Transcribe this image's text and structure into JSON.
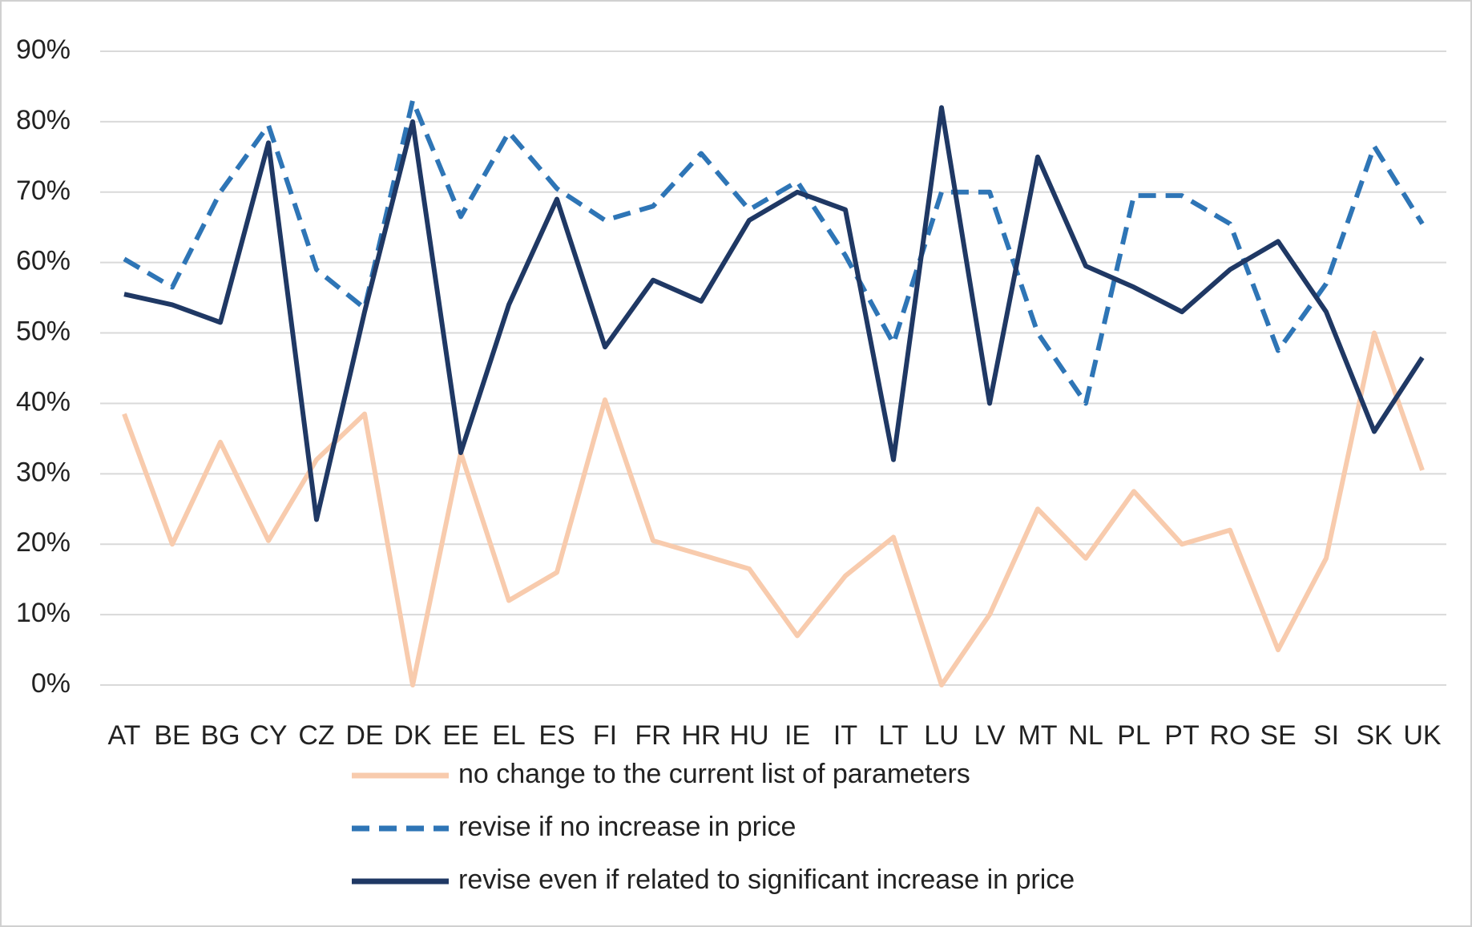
{
  "chart_data": {
    "type": "line",
    "categories": [
      "AT",
      "BE",
      "BG",
      "CY",
      "CZ",
      "DE",
      "DK",
      "EE",
      "EL",
      "ES",
      "FI",
      "FR",
      "HR",
      "HU",
      "IE",
      "IT",
      "LT",
      "LU",
      "LV",
      "MT",
      "NL",
      "PL",
      "PT",
      "RO",
      "SE",
      "SI",
      "SK",
      "UK"
    ],
    "series": [
      {
        "name": "no change to the current list of parameters",
        "color": "#f8cbad",
        "dash": false,
        "values": [
          38.5,
          20,
          34.5,
          20.5,
          32,
          38.5,
          0,
          33,
          12,
          16,
          40.5,
          20.5,
          18.5,
          16.5,
          7,
          15.5,
          21,
          0,
          10,
          25,
          18,
          27.5,
          20,
          22,
          5,
          18,
          50,
          30.5
        ]
      },
      {
        "name": "revise if no increase in price",
        "color": "#2e75b6",
        "dash": true,
        "values": [
          60.5,
          56.5,
          70,
          79.5,
          59,
          53.5,
          83,
          66.5,
          78.5,
          70.5,
          66,
          68,
          75.5,
          67.5,
          71.5,
          61,
          48.5,
          70,
          70,
          50,
          40,
          69.5,
          69.5,
          65.5,
          47.5,
          57,
          76.5,
          65.5
        ]
      },
      {
        "name": "revise even if related to significant increase in price",
        "color": "#1f3864",
        "dash": false,
        "values": [
          55.5,
          54,
          51.5,
          77,
          23.5,
          53,
          80,
          33,
          54,
          69,
          48,
          57.5,
          54.5,
          66,
          70,
          67.5,
          32,
          82,
          40,
          75,
          59.5,
          56.5,
          53,
          59,
          63,
          53,
          36,
          46.5
        ]
      }
    ],
    "ylim": [
      0,
      90
    ],
    "yticks": [
      {
        "value": 0,
        "label": "0%"
      },
      {
        "value": 10,
        "label": "10%"
      },
      {
        "value": 20,
        "label": "20%"
      },
      {
        "value": 30,
        "label": "30%"
      },
      {
        "value": 40,
        "label": "40%"
      },
      {
        "value": 50,
        "label": "50%"
      },
      {
        "value": 60,
        "label": "60%"
      },
      {
        "value": 70,
        "label": "70%"
      },
      {
        "value": 80,
        "label": "80%"
      },
      {
        "value": 90,
        "label": "90%"
      }
    ],
    "grid": true,
    "legend": "bottom"
  }
}
